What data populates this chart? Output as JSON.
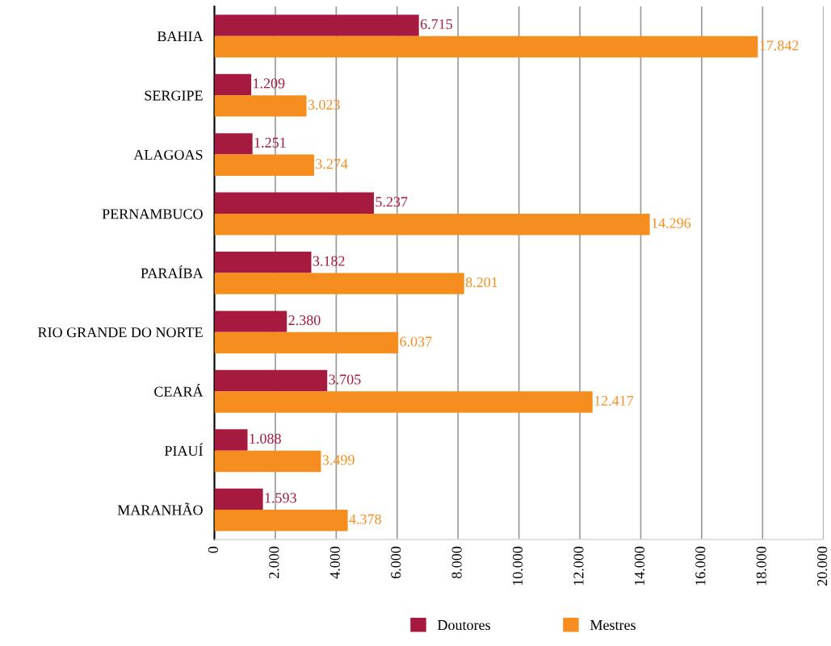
{
  "chart_data": {
    "type": "bar",
    "orientation": "horizontal",
    "categories": [
      "BAHIA",
      "SERGIPE",
      "ALAGOAS",
      "PERNAMBUCO",
      "PARAÍBA",
      "RIO GRANDE DO NORTE",
      "CEARÁ",
      "PIAUÍ",
      "MARANHÃO"
    ],
    "series": [
      {
        "name": "Doutores",
        "color": "#a51a3e",
        "values": [
          6715,
          1209,
          1251,
          5237,
          3182,
          2380,
          3705,
          1088,
          1593
        ],
        "value_labels": [
          "6.715",
          "1.209",
          "1.251",
          "5.237",
          "3.182",
          "2.380",
          "3.705",
          "1.088",
          "1.593"
        ]
      },
      {
        "name": "Mestres",
        "color": "#f68e1f",
        "values": [
          17842,
          3023,
          3274,
          14296,
          8201,
          6037,
          12417,
          3499,
          4378
        ],
        "value_labels": [
          "17.842",
          "3.023",
          "3.274",
          "14.296",
          "8.201",
          "6.037",
          "12.417",
          "3.499",
          "4.378"
        ]
      }
    ],
    "xlim": [
      0,
      20000
    ],
    "xticks": [
      0,
      {
        "value": 2000,
        "label": "2.000"
      },
      {
        "value": 4000,
        "label": "4.000"
      },
      {
        "value": 6000,
        "label": "6.000"
      },
      {
        "value": 8000,
        "label": "8.000"
      },
      {
        "value": 10000,
        "label": "10.000"
      },
      {
        "value": 12000,
        "label": "12.000"
      },
      {
        "value": 14000,
        "label": "14.000"
      },
      {
        "value": 16000,
        "label": "16.000"
      },
      {
        "value": 18000,
        "label": "18.000"
      },
      {
        "value": 20000,
        "label": "20.000"
      }
    ],
    "grid": "x",
    "legend": "bottom"
  }
}
